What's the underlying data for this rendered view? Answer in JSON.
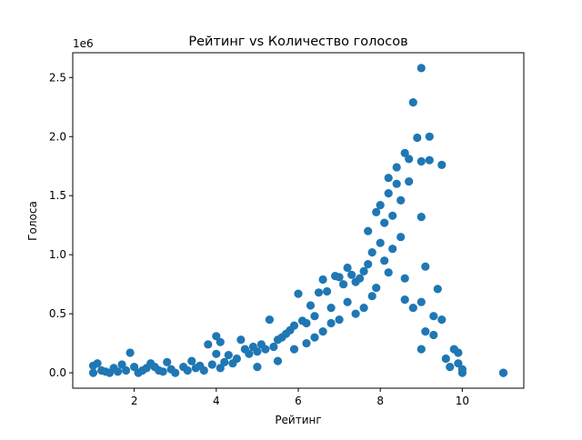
{
  "chart_data": {
    "type": "scatter",
    "title": "Рейтинг vs Количество голосов",
    "xlabel": "Рейтинг",
    "ylabel": "Голоса",
    "y_offset_label": "1e6",
    "xlim": [
      0.5,
      11.5
    ],
    "ylim": [
      -0.13,
      2.71
    ],
    "x_ticks": [
      2,
      4,
      6,
      8,
      10
    ],
    "x_tick_labels": [
      "2",
      "4",
      "6",
      "8",
      "10"
    ],
    "y_ticks": [
      0,
      0.5,
      1.0,
      1.5,
      2.0,
      2.5
    ],
    "y_tick_labels": [
      "0.0",
      "0.5",
      "1.0",
      "1.5",
      "2.0",
      "2.5"
    ],
    "y_scale": 1000000,
    "grid": false,
    "marker_color": "#1f77b4",
    "series": [
      {
        "points": [
          [
            1.0,
            0.0
          ],
          [
            1.0,
            0.06
          ],
          [
            1.1,
            0.08
          ],
          [
            1.2,
            0.02
          ],
          [
            1.3,
            0.01
          ],
          [
            1.4,
            0.0
          ],
          [
            1.5,
            0.04
          ],
          [
            1.6,
            0.01
          ],
          [
            1.7,
            0.07
          ],
          [
            1.8,
            0.02
          ],
          [
            1.9,
            0.17
          ],
          [
            2.0,
            0.05
          ],
          [
            2.1,
            0.0
          ],
          [
            2.2,
            0.02
          ],
          [
            2.3,
            0.04
          ],
          [
            2.4,
            0.08
          ],
          [
            2.5,
            0.05
          ],
          [
            2.6,
            0.02
          ],
          [
            2.7,
            0.01
          ],
          [
            2.8,
            0.09
          ],
          [
            2.9,
            0.03
          ],
          [
            3.0,
            0.0
          ],
          [
            3.2,
            0.05
          ],
          [
            3.3,
            0.02
          ],
          [
            3.4,
            0.1
          ],
          [
            3.5,
            0.04
          ],
          [
            3.6,
            0.06
          ],
          [
            3.7,
            0.02
          ],
          [
            3.8,
            0.24
          ],
          [
            3.9,
            0.07
          ],
          [
            4.0,
            0.16
          ],
          [
            4.0,
            0.31
          ],
          [
            4.1,
            0.26
          ],
          [
            4.1,
            0.04
          ],
          [
            4.2,
            0.09
          ],
          [
            4.3,
            0.15
          ],
          [
            4.4,
            0.08
          ],
          [
            4.5,
            0.12
          ],
          [
            4.6,
            0.28
          ],
          [
            4.7,
            0.2
          ],
          [
            4.8,
            0.16
          ],
          [
            4.9,
            0.22
          ],
          [
            5.0,
            0.18
          ],
          [
            5.1,
            0.24
          ],
          [
            5.2,
            0.2
          ],
          [
            5.3,
            0.45
          ],
          [
            5.4,
            0.22
          ],
          [
            5.5,
            0.28
          ],
          [
            5.6,
            0.3
          ],
          [
            5.7,
            0.33
          ],
          [
            5.8,
            0.36
          ],
          [
            5.9,
            0.4
          ],
          [
            6.0,
            0.67
          ],
          [
            6.1,
            0.44
          ],
          [
            6.2,
            0.42
          ],
          [
            6.3,
            0.57
          ],
          [
            6.4,
            0.48
          ],
          [
            6.5,
            0.68
          ],
          [
            6.6,
            0.79
          ],
          [
            6.7,
            0.69
          ],
          [
            6.8,
            0.55
          ],
          [
            6.9,
            0.82
          ],
          [
            7.0,
            0.81
          ],
          [
            7.1,
            0.75
          ],
          [
            7.2,
            0.89
          ],
          [
            7.3,
            0.83
          ],
          [
            7.4,
            0.77
          ],
          [
            7.5,
            0.8
          ],
          [
            7.6,
            0.86
          ],
          [
            7.7,
            1.2
          ],
          [
            7.7,
            0.92
          ],
          [
            7.8,
            1.02
          ],
          [
            7.9,
            1.36
          ],
          [
            8.0,
            1.1
          ],
          [
            8.0,
            1.42
          ],
          [
            8.1,
            1.27
          ],
          [
            8.2,
            1.52
          ],
          [
            8.2,
            1.65
          ],
          [
            8.3,
            1.33
          ],
          [
            8.4,
            1.6
          ],
          [
            8.4,
            1.74
          ],
          [
            8.5,
            1.46
          ],
          [
            8.6,
            1.86
          ],
          [
            8.7,
            1.81
          ],
          [
            8.7,
            1.62
          ],
          [
            8.8,
            2.29
          ],
          [
            8.9,
            1.99
          ],
          [
            9.0,
            2.58
          ],
          [
            9.0,
            1.79
          ],
          [
            9.0,
            1.32
          ],
          [
            9.2,
            2.0
          ],
          [
            9.2,
            1.8
          ],
          [
            9.1,
            0.9
          ],
          [
            9.4,
            0.71
          ],
          [
            9.5,
            1.76
          ],
          [
            8.6,
            0.8
          ],
          [
            8.8,
            0.55
          ],
          [
            9.0,
            0.6
          ],
          [
            9.3,
            0.48
          ],
          [
            9.5,
            0.45
          ],
          [
            9.1,
            0.35
          ],
          [
            9.3,
            0.32
          ],
          [
            9.0,
            0.2
          ],
          [
            9.6,
            0.12
          ],
          [
            9.8,
            0.2
          ],
          [
            9.9,
            0.17
          ],
          [
            9.7,
            0.05
          ],
          [
            9.9,
            0.08
          ],
          [
            10.0,
            0.0
          ],
          [
            10.0,
            0.03
          ],
          [
            11.0,
            0.0
          ],
          [
            11.0,
            0.0
          ],
          [
            6.4,
            0.3
          ],
          [
            6.8,
            0.42
          ],
          [
            7.2,
            0.6
          ],
          [
            7.6,
            0.55
          ],
          [
            7.9,
            0.72
          ],
          [
            8.1,
            0.95
          ],
          [
            8.3,
            1.05
          ],
          [
            8.5,
            1.15
          ],
          [
            7.4,
            0.5
          ],
          [
            7.0,
            0.45
          ],
          [
            6.6,
            0.35
          ],
          [
            8.6,
            0.62
          ],
          [
            8.2,
            0.85
          ],
          [
            7.8,
            0.65
          ],
          [
            5.9,
            0.2
          ],
          [
            6.2,
            0.25
          ],
          [
            5.5,
            0.1
          ],
          [
            5.0,
            0.05
          ]
        ]
      }
    ]
  }
}
